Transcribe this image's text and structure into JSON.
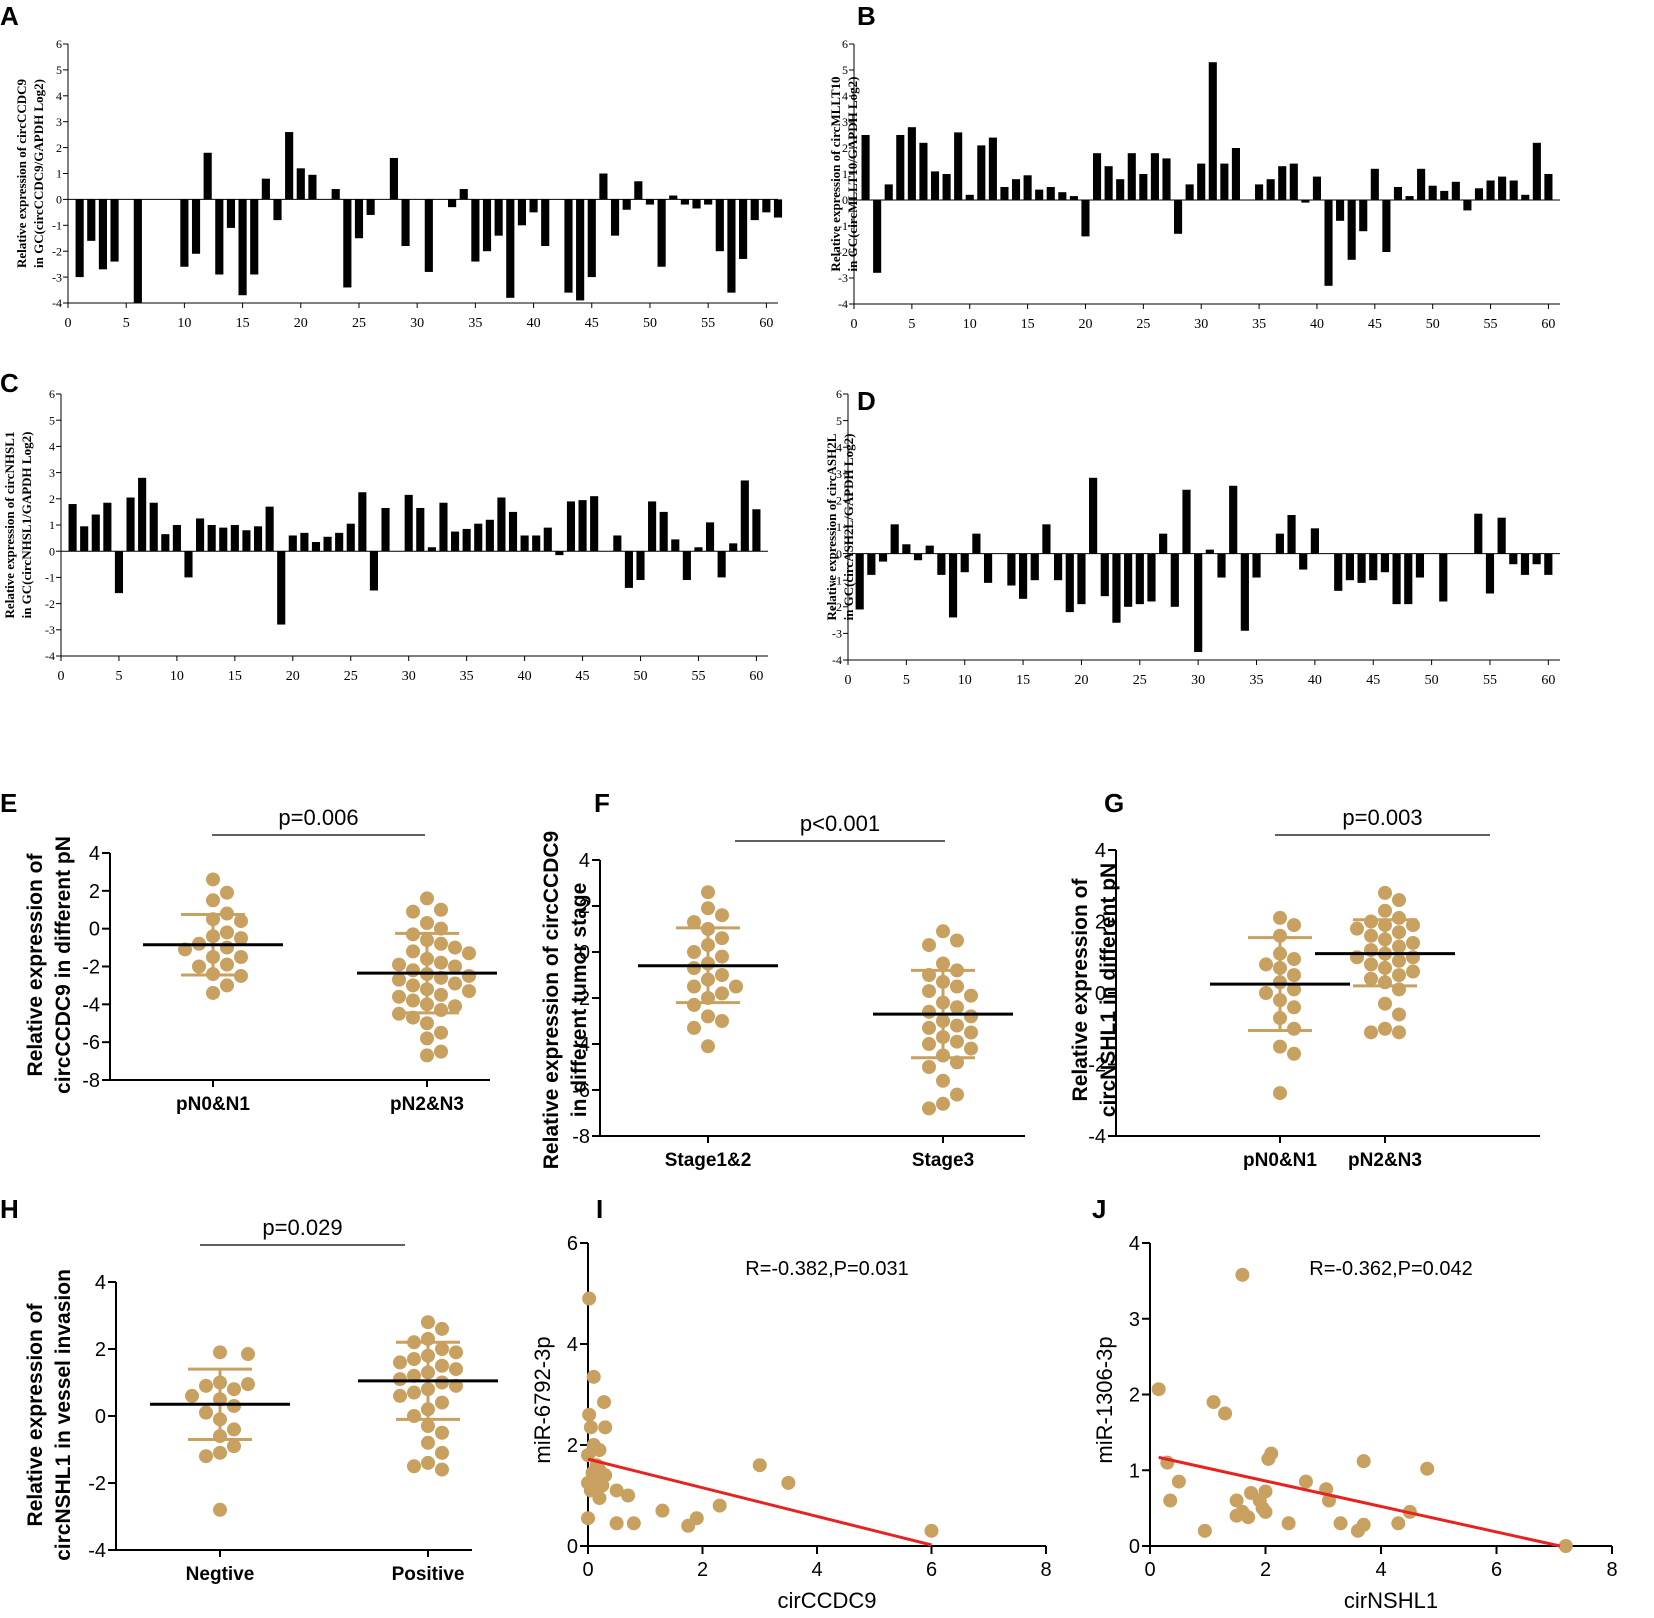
{
  "colors": {
    "bar": "#000000",
    "dot": "#c8a060",
    "err": "#c8a060",
    "fit": "#e8231f",
    "axis": "#000000"
  },
  "chart_data": [
    {
      "panel": "A",
      "type": "bar",
      "ylabel_lines": [
        "Relative expression of circCCDC9",
        "in GC(circCCDC9/GAPDH Log2)"
      ],
      "xlim": [
        0,
        61
      ],
      "ylim": [
        -4,
        6
      ],
      "xticks": [
        0,
        5,
        10,
        15,
        20,
        25,
        30,
        35,
        40,
        45,
        50,
        55,
        60
      ],
      "yticks": [
        -4,
        -3,
        -2,
        -1,
        0,
        1,
        2,
        3,
        4,
        5,
        6
      ],
      "values": [
        -3.0,
        -1.6,
        -2.7,
        -2.4,
        0,
        -4.0,
        0,
        0,
        0,
        -2.6,
        -2.1,
        1.8,
        -2.9,
        -1.1,
        -3.7,
        -2.9,
        0.8,
        -0.8,
        2.6,
        1.2,
        0.95,
        0,
        0.4,
        -3.4,
        -1.5,
        -0.6,
        0,
        1.6,
        -1.8,
        0,
        -2.8,
        0,
        -0.3,
        0.4,
        -2.4,
        -2.0,
        -1.4,
        -3.8,
        -1.0,
        -0.5,
        -1.8,
        0,
        -3.6,
        -3.9,
        -3.0,
        1.0,
        -1.4,
        -0.4,
        0.7,
        -0.2,
        -2.6,
        0.15,
        -0.2,
        -0.35,
        -0.2,
        -2.0,
        -3.6,
        -2.3,
        -0.8,
        -0.5,
        -0.7
      ]
    },
    {
      "panel": "B",
      "type": "bar",
      "ylabel_lines": [
        "Relative expression of circMLLT10",
        "in GC(circMLLT10/GAPDH Log2)"
      ],
      "xlim": [
        0,
        61
      ],
      "ylim": [
        -4,
        6
      ],
      "xticks": [
        0,
        5,
        10,
        15,
        20,
        25,
        30,
        35,
        40,
        45,
        50,
        55,
        60
      ],
      "yticks": [
        -4,
        -3,
        -2,
        -1,
        0,
        1,
        2,
        3,
        4,
        5,
        6
      ],
      "values": [
        2.5,
        -2.8,
        0.6,
        2.5,
        2.8,
        2.2,
        1.1,
        1.0,
        2.6,
        0.2,
        2.1,
        2.4,
        0.5,
        0.8,
        0.95,
        0.4,
        0.5,
        0.3,
        0.15,
        -1.4,
        1.8,
        1.3,
        0.8,
        1.8,
        1.0,
        1.8,
        1.6,
        -1.3,
        0.6,
        1.4,
        5.3,
        1.4,
        2.0,
        0,
        0.6,
        0.8,
        1.3,
        1.4,
        -0.1,
        0.9,
        -3.3,
        -0.8,
        -2.3,
        -1.2,
        1.2,
        -2.0,
        0.5,
        0.15,
        1.2,
        0.55,
        0.35,
        0.7,
        -0.4,
        0.45,
        0.75,
        0.9,
        0.75,
        0.2,
        2.2,
        1.0
      ]
    },
    {
      "panel": "C",
      "type": "bar",
      "ylabel_lines": [
        "Relative expression of circNHSL1",
        "in GC(circNHSL1/GAPDH Log2)"
      ],
      "xlim": [
        0,
        61
      ],
      "ylim": [
        -4,
        6
      ],
      "xticks": [
        0,
        5,
        10,
        15,
        20,
        25,
        30,
        35,
        40,
        45,
        50,
        55,
        60
      ],
      "yticks": [
        -4,
        -3,
        -2,
        -1,
        0,
        1,
        2,
        3,
        4,
        5,
        6
      ],
      "values": [
        1.8,
        0.95,
        1.4,
        1.85,
        -1.6,
        2.05,
        2.8,
        1.85,
        0.65,
        1.0,
        -1.0,
        1.25,
        1.0,
        0.9,
        1.0,
        0.8,
        0.95,
        1.7,
        -2.8,
        0.6,
        0.7,
        0.35,
        0.55,
        0.7,
        1.05,
        2.25,
        -1.5,
        1.65,
        0,
        2.15,
        1.65,
        0.15,
        1.85,
        0.75,
        0.85,
        1.05,
        1.2,
        2.05,
        1.5,
        0.6,
        0.6,
        0.9,
        -0.15,
        1.9,
        1.95,
        2.1,
        0,
        0.6,
        -1.4,
        -1.1,
        1.9,
        1.5,
        0.45,
        -1.1,
        0.15,
        1.1,
        -1.0,
        0.3,
        2.7,
        1.6
      ]
    },
    {
      "panel": "D",
      "type": "bar",
      "ylabel_lines": [
        "Relative expression of circASH2L",
        "in GC(circASH2L/GAPDH Log2)"
      ],
      "xlim": [
        0,
        61
      ],
      "ylim": [
        -4,
        6
      ],
      "xticks": [
        0,
        5,
        10,
        15,
        20,
        25,
        30,
        35,
        40,
        45,
        50,
        55,
        60
      ],
      "yticks": [
        -4,
        -3,
        -2,
        -1,
        0,
        1,
        2,
        3,
        4,
        5,
        6
      ],
      "values": [
        -2.1,
        -0.8,
        -0.3,
        1.1,
        0.35,
        -0.25,
        0.3,
        -0.8,
        -2.4,
        -0.7,
        0.75,
        -1.1,
        0,
        -1.2,
        -1.7,
        -1.0,
        1.1,
        -1.0,
        -2.2,
        -1.9,
        2.85,
        -1.6,
        -2.6,
        -2.0,
        -1.9,
        -1.8,
        0.75,
        -2.0,
        2.4,
        -3.7,
        0.15,
        -0.9,
        2.55,
        -2.9,
        -0.9,
        0,
        0.75,
        1.45,
        -0.6,
        0.95,
        0,
        -1.4,
        -1.0,
        -1.1,
        -1.0,
        -0.7,
        -1.9,
        -1.9,
        -0.9,
        0,
        -1.8,
        0,
        0,
        1.5,
        -1.5,
        1.35,
        -0.4,
        -0.8,
        -0.4,
        -0.8
      ]
    },
    {
      "panel": "E",
      "type": "scatter",
      "ylabel_lines": [
        "Relative expression of",
        "circCCDC9 in different pN"
      ],
      "categories": [
        "pN0&N1",
        "pN2&N3"
      ],
      "ylim": [
        -8,
        4
      ],
      "yticks": [
        -8,
        -6,
        -4,
        -2,
        0,
        2,
        4
      ],
      "pvalue": "p=0.006",
      "groups": [
        {
          "name": "pN0&N1",
          "mean": -0.85,
          "sd_low": -2.45,
          "sd_high": 0.75,
          "points": [
            2.6,
            1.9,
            1.5,
            0.8,
            0.5,
            0.4,
            -0.2,
            -0.4,
            -0.5,
            -0.8,
            -1.0,
            -1.1,
            -1.5,
            -1.5,
            -1.9,
            -2.0,
            -2.4,
            -2.5,
            -3.0,
            -3.4
          ]
        },
        {
          "name": "pN2&N3",
          "mean": -2.35,
          "sd_low": -4.45,
          "sd_high": -0.25,
          "points": [
            1.6,
            1.0,
            0.9,
            0.3,
            0.0,
            -0.3,
            -0.6,
            -0.8,
            -1.0,
            -1.2,
            -1.3,
            -1.6,
            -1.8,
            -1.9,
            -2.0,
            -2.2,
            -2.4,
            -2.5,
            -2.6,
            -2.7,
            -2.9,
            -3.0,
            -3.2,
            -3.3,
            -3.5,
            -3.6,
            -3.8,
            -4.0,
            -4.1,
            -4.3,
            -4.5,
            -4.7,
            -5.0,
            -5.5,
            -5.8,
            -6.5,
            -6.7
          ]
        }
      ]
    },
    {
      "panel": "F",
      "type": "scatter",
      "ylabel_lines": [
        "Relative expression of circCCDC9",
        "in different tumor stage"
      ],
      "categories": [
        "Stage1&2",
        "Stage3"
      ],
      "ylim": [
        -8,
        4
      ],
      "yticks": [
        -8,
        -6,
        -4,
        -2,
        0,
        2,
        4
      ],
      "pvalue": "p<0.001",
      "groups": [
        {
          "name": "Stage1&2",
          "mean": -0.6,
          "sd_low": -2.2,
          "sd_high": 1.05,
          "points": [
            2.6,
            1.9,
            1.6,
            1.3,
            1.0,
            0.6,
            0.3,
            0.0,
            -0.2,
            -0.5,
            -0.7,
            -1.0,
            -1.2,
            -1.5,
            -1.5,
            -1.8,
            -2.0,
            -2.3,
            -2.8,
            -3.0,
            -3.3,
            -4.1
          ]
        },
        {
          "name": "Stage3",
          "mean": -2.7,
          "sd_low": -4.6,
          "sd_high": -0.8,
          "points": [
            0.9,
            0.5,
            0.3,
            -0.5,
            -0.8,
            -1.0,
            -1.3,
            -1.5,
            -1.7,
            -1.9,
            -2.2,
            -2.4,
            -2.6,
            -2.8,
            -3.0,
            -3.2,
            -3.3,
            -3.5,
            -3.7,
            -3.9,
            -4.0,
            -4.2,
            -4.5,
            -4.8,
            -5.0,
            -5.6,
            -6.2,
            -6.6,
            -6.8
          ]
        }
      ]
    },
    {
      "panel": "G",
      "type": "scatter",
      "ylabel_lines": [
        "Relative expression of",
        "circNSHL1 in different pN"
      ],
      "categories": [
        "pN0&N1",
        "pN2&N3"
      ],
      "ylim": [
        -4,
        4
      ],
      "yticks": [
        -4,
        -2,
        0,
        2,
        4
      ],
      "pvalue": "p=0.003",
      "groups": [
        {
          "name": "pN0&N1",
          "mean": 0.25,
          "sd_low": -1.05,
          "sd_high": 1.55,
          "points": [
            2.1,
            1.9,
            1.6,
            1.1,
            0.95,
            0.8,
            0.7,
            0.5,
            0.3,
            0.1,
            0.0,
            -0.2,
            -0.4,
            -0.7,
            -1.0,
            -1.5,
            -1.7,
            -2.8
          ]
        },
        {
          "name": "pN2&N3",
          "mean": 1.1,
          "sd_low": 0.2,
          "sd_high": 2.05,
          "points": [
            2.8,
            2.6,
            2.3,
            2.1,
            2.0,
            1.9,
            1.9,
            1.8,
            1.7,
            1.6,
            1.5,
            1.4,
            1.3,
            1.2,
            1.1,
            1.0,
            1.0,
            0.9,
            0.8,
            0.7,
            0.6,
            0.5,
            0.4,
            0.3,
            0.1,
            -0.3,
            -0.6,
            -1.0,
            -1.1,
            -1.1
          ]
        }
      ]
    },
    {
      "panel": "H",
      "type": "scatter",
      "ylabel_lines": [
        "Relative expression of",
        "circNSHL1 in vessel invasion"
      ],
      "categories": [
        "Negtive",
        "Positive"
      ],
      "ylim": [
        -4,
        4
      ],
      "yticks": [
        -4,
        -2,
        0,
        2,
        4
      ],
      "pvalue": "p=0.029",
      "groups": [
        {
          "name": "Negtive",
          "mean": 0.35,
          "sd_low": -0.7,
          "sd_high": 1.4,
          "points": [
            1.9,
            1.85,
            1.0,
            0.95,
            0.9,
            0.8,
            0.6,
            0.5,
            0.3,
            0.1,
            -0.1,
            -0.4,
            -0.6,
            -0.9,
            -1.1,
            -1.2,
            -2.8
          ]
        },
        {
          "name": "Positive",
          "mean": 1.05,
          "sd_low": -0.1,
          "sd_high": 2.2,
          "points": [
            2.8,
            2.6,
            2.3,
            2.2,
            2.0,
            1.9,
            1.8,
            1.7,
            1.6,
            1.5,
            1.4,
            1.3,
            1.2,
            1.1,
            1.0,
            0.9,
            0.8,
            0.7,
            0.6,
            0.4,
            0.2,
            0.0,
            -0.3,
            -0.5,
            -0.8,
            -1.1,
            -1.4,
            -1.6,
            -1.5
          ]
        }
      ]
    },
    {
      "panel": "I",
      "type": "scatter",
      "xlabel": "cirCCDC9",
      "ylabel": "miR-6792-3p",
      "xlim": [
        0,
        8
      ],
      "ylim": [
        0,
        6
      ],
      "xticks": [
        0,
        2,
        4,
        6,
        8
      ],
      "yticks": [
        0,
        2,
        4,
        6
      ],
      "annotation": "R=-0.382,P=0.031",
      "fit": {
        "x": [
          0.0,
          6.0
        ],
        "y": [
          1.72,
          0.02
        ]
      },
      "points": [
        [
          0.02,
          4.9
        ],
        [
          0.1,
          3.35
        ],
        [
          0.28,
          2.85
        ],
        [
          0.02,
          2.6
        ],
        [
          0.3,
          2.35
        ],
        [
          0.05,
          2.35
        ],
        [
          0.1,
          2.0
        ],
        [
          0.2,
          1.9
        ],
        [
          0.0,
          1.8
        ],
        [
          0.15,
          1.6
        ],
        [
          0.2,
          1.5
        ],
        [
          0.08,
          1.45
        ],
        [
          0.3,
          1.4
        ],
        [
          0.12,
          1.3
        ],
        [
          0.0,
          1.25
        ],
        [
          0.25,
          1.2
        ],
        [
          0.05,
          1.1
        ],
        [
          0.5,
          1.1
        ],
        [
          0.7,
          1.0
        ],
        [
          0.2,
          0.95
        ],
        [
          0.0,
          0.55
        ],
        [
          0.5,
          0.45
        ],
        [
          0.8,
          0.45
        ],
        [
          1.3,
          0.7
        ],
        [
          1.75,
          0.4
        ],
        [
          1.9,
          0.55
        ],
        [
          2.3,
          0.8
        ],
        [
          3.0,
          1.6
        ],
        [
          3.5,
          1.25
        ],
        [
          6.0,
          0.3
        ]
      ]
    },
    {
      "panel": "J",
      "type": "scatter",
      "xlabel": "cirNSHL1",
      "ylabel": "miR-1306-3p",
      "xlim": [
        0,
        8
      ],
      "ylim": [
        0,
        4
      ],
      "xticks": [
        0,
        2,
        4,
        6,
        8
      ],
      "yticks": [
        0,
        1,
        2,
        3,
        4
      ],
      "annotation": "R=-0.362,P=0.042",
      "fit": {
        "x": [
          0.15,
          7.1
        ],
        "y": [
          1.17,
          0.0
        ]
      },
      "points": [
        [
          0.15,
          2.07
        ],
        [
          0.3,
          1.1
        ],
        [
          0.35,
          0.6
        ],
        [
          0.5,
          0.85
        ],
        [
          0.95,
          0.2
        ],
        [
          1.1,
          1.9
        ],
        [
          1.3,
          1.75
        ],
        [
          1.5,
          0.6
        ],
        [
          1.6,
          3.58
        ],
        [
          1.5,
          0.4
        ],
        [
          1.6,
          0.45
        ],
        [
          1.7,
          0.38
        ],
        [
          1.75,
          0.7
        ],
        [
          1.9,
          0.6
        ],
        [
          1.95,
          0.5
        ],
        [
          2.0,
          0.72
        ],
        [
          2.0,
          0.45
        ],
        [
          2.05,
          1.15
        ],
        [
          2.1,
          1.22
        ],
        [
          2.4,
          0.3
        ],
        [
          2.7,
          0.85
        ],
        [
          3.05,
          0.75
        ],
        [
          3.1,
          0.6
        ],
        [
          3.3,
          0.3
        ],
        [
          3.6,
          0.2
        ],
        [
          3.7,
          0.28
        ],
        [
          3.7,
          1.12
        ],
        [
          4.3,
          0.3
        ],
        [
          4.5,
          0.45
        ],
        [
          4.8,
          1.02
        ],
        [
          7.2,
          0.0
        ]
      ]
    }
  ]
}
